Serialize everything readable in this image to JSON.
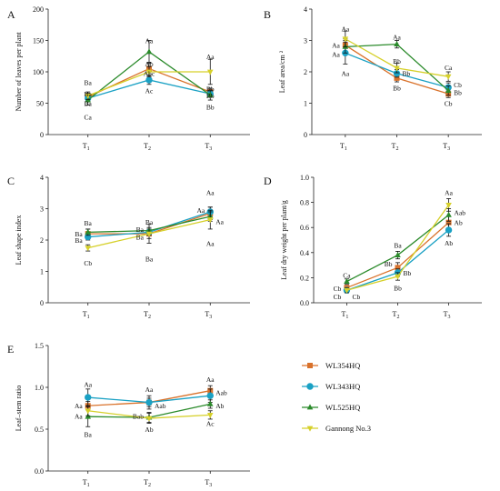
{
  "colors": {
    "WL354HQ": "#d9722b",
    "WL343HQ": "#1aa1c4",
    "WL525HQ": "#2a8a2a",
    "Gannong No.3": "#d6d02a",
    "axis": "#222222"
  },
  "legend": {
    "position": "bottom-right",
    "items": [
      {
        "name": "WL354HQ",
        "marker": "square"
      },
      {
        "name": "WL343HQ",
        "marker": "circle"
      },
      {
        "name": "WL525HQ",
        "marker": "triangle-up"
      },
      {
        "name": "Gannong No.3",
        "marker": "triangle-down"
      }
    ]
  },
  "chart_data": [
    {
      "panel": "A",
      "type": "line",
      "x": [
        "T1",
        "T2",
        "T3"
      ],
      "x_tick_labels": [
        {
          "base": "T",
          "sub": "1"
        },
        {
          "base": "T",
          "sub": "2"
        },
        {
          "base": "T",
          "sub": "3"
        }
      ],
      "ylabel": "Number of leaves per plant",
      "ylim": [
        0,
        200
      ],
      "yticks": [
        "0",
        "50",
        "100",
        "150",
        "200"
      ],
      "series": [
        {
          "name": "WL354HQ",
          "values": [
            60,
            105,
            68
          ],
          "err": [
            6,
            10,
            6
          ]
        },
        {
          "name": "WL343HQ",
          "values": [
            58,
            87,
            65
          ],
          "err": [
            6,
            7,
            5
          ]
        },
        {
          "name": "WL525HQ",
          "values": [
            55,
            132,
            63
          ],
          "err": [
            8,
            18,
            8
          ]
        },
        {
          "name": "Gannong No.3",
          "values": [
            62,
            100,
            100
          ],
          "err": [
            6,
            8,
            20
          ]
        }
      ],
      "annotations": [
        {
          "text": "Ba",
          "x": 0,
          "y": 83
        },
        {
          "text": "Ba",
          "x": 0,
          "y": 65
        },
        {
          "text": "Ba",
          "x": 0,
          "y": 50
        },
        {
          "text": "Ca",
          "x": 0,
          "y": 28
        },
        {
          "text": "Aa",
          "x": 1,
          "y": 150
        },
        {
          "text": "Ab",
          "x": 1,
          "y": 113
        },
        {
          "text": "Abc",
          "x": 1,
          "y": 98
        },
        {
          "text": "Ac",
          "x": 1,
          "y": 70
        },
        {
          "text": "Aa",
          "x": 2,
          "y": 125
        },
        {
          "text": "Bb",
          "x": 2,
          "y": 73
        },
        {
          "text": "Bb",
          "x": 2,
          "y": 62
        },
        {
          "text": "Bb",
          "x": 2,
          "y": 44
        }
      ]
    },
    {
      "panel": "B",
      "type": "line",
      "x": [
        "T1",
        "T2",
        "T3"
      ],
      "x_tick_labels": [
        {
          "base": "T",
          "sub": "1"
        },
        {
          "base": "T",
          "sub": "2"
        },
        {
          "base": "T",
          "sub": "3"
        }
      ],
      "ylabel": "Leaf area/cm ²",
      "ylim": [
        0,
        4
      ],
      "yticks": [
        "0",
        "1",
        "2",
        "3",
        "4"
      ],
      "series": [
        {
          "name": "WL354HQ",
          "values": [
            2.85,
            1.8,
            1.3
          ],
          "err": [
            0.2,
            0.12,
            0.12
          ]
        },
        {
          "name": "WL343HQ",
          "values": [
            2.6,
            1.95,
            1.5
          ],
          "err": [
            0.35,
            0.12,
            0.15
          ]
        },
        {
          "name": "WL525HQ",
          "values": [
            2.8,
            2.88,
            1.4
          ],
          "err": [
            0.2,
            0.12,
            0.15
          ]
        },
        {
          "name": "Gannong No.3",
          "values": [
            3.05,
            2.12,
            1.85
          ],
          "err": [
            0.25,
            0.15,
            0.15
          ]
        }
      ],
      "annotations": [
        {
          "text": "Aa",
          "x": 0,
          "y": 3.38
        },
        {
          "text": "Aa",
          "x": 0,
          "y": 2.85,
          "side": "left"
        },
        {
          "text": "Aa",
          "x": 0,
          "y": 2.57,
          "side": "left"
        },
        {
          "text": "Aa",
          "x": 0,
          "y": 1.95
        },
        {
          "text": "Aa",
          "x": 1,
          "y": 3.12
        },
        {
          "text": "Bb",
          "x": 1,
          "y": 2.35
        },
        {
          "text": "Bb",
          "x": 1,
          "y": 1.95,
          "side": "right"
        },
        {
          "text": "Bb",
          "x": 1,
          "y": 1.5
        },
        {
          "text": "Ca",
          "x": 2,
          "y": 2.15
        },
        {
          "text": "Cb",
          "x": 2,
          "y": 1.6,
          "side": "right"
        },
        {
          "text": "Bb",
          "x": 2,
          "y": 1.35,
          "side": "right"
        },
        {
          "text": "Cb",
          "x": 2,
          "y": 1.0
        }
      ]
    },
    {
      "panel": "C",
      "type": "line",
      "x": [
        "T1",
        "T2",
        "T3"
      ],
      "x_tick_labels": [
        {
          "base": "T",
          "sub": "1"
        },
        {
          "base": "T",
          "sub": "2"
        },
        {
          "base": "T",
          "sub": "3"
        }
      ],
      "ylabel": "Leaf shape index",
      "ylim": [
        0,
        4
      ],
      "yticks": [
        "0",
        "1",
        "2",
        "3",
        "4"
      ],
      "series": [
        {
          "name": "WL354HQ",
          "values": [
            2.2,
            2.2,
            2.85
          ],
          "err": [
            0.15,
            0.15,
            0.2
          ]
        },
        {
          "name": "WL343HQ",
          "values": [
            2.1,
            2.25,
            2.9
          ],
          "err": [
            0.1,
            0.1,
            0.15
          ]
        },
        {
          "name": "WL525HQ",
          "values": [
            2.25,
            2.3,
            2.75
          ],
          "err": [
            0.1,
            0.1,
            0.15
          ]
        },
        {
          "name": "Gannong No.3",
          "values": [
            1.75,
            2.2,
            2.65
          ],
          "err": [
            0.1,
            0.3,
            0.3
          ]
        }
      ],
      "annotations": [
        {
          "text": "Ba",
          "x": 0,
          "y": 2.55
        },
        {
          "text": "Ba",
          "x": 0,
          "y": 2.2,
          "side": "left"
        },
        {
          "text": "Ba",
          "x": 0,
          "y": 2.0,
          "side": "left"
        },
        {
          "text": "Cb",
          "x": 0,
          "y": 1.28
        },
        {
          "text": "Ba",
          "x": 1,
          "y": 2.58
        },
        {
          "text": "Ba",
          "x": 1,
          "y": 2.35,
          "side": "left"
        },
        {
          "text": "Ba",
          "x": 1,
          "y": 2.1,
          "side": "left"
        },
        {
          "text": "Ba",
          "x": 1,
          "y": 1.4
        },
        {
          "text": "Aa",
          "x": 2,
          "y": 3.52
        },
        {
          "text": "Aa",
          "x": 2,
          "y": 2.95,
          "side": "left"
        },
        {
          "text": "Aa",
          "x": 2,
          "y": 2.6,
          "side": "right"
        },
        {
          "text": "Aa",
          "x": 2,
          "y": 1.9
        }
      ]
    },
    {
      "panel": "D",
      "type": "line",
      "x": [
        "T1",
        "T2",
        "T3"
      ],
      "x_tick_labels": [
        {
          "base": "T",
          "sub": "1"
        },
        {
          "base": "T",
          "sub": "2"
        },
        {
          "base": "T",
          "sub": "3"
        }
      ],
      "ylabel": "Leaf dry weight per plant/g",
      "ylim": [
        0,
        1.0
      ],
      "yticks": [
        "0.0",
        "0.2",
        "0.4",
        "0.6",
        "0.8",
        "1.0"
      ],
      "series": [
        {
          "name": "WL354HQ",
          "values": [
            0.12,
            0.28,
            0.64
          ],
          "err": [
            0.02,
            0.04,
            0.05
          ]
        },
        {
          "name": "WL343HQ",
          "values": [
            0.1,
            0.24,
            0.58
          ],
          "err": [
            0.02,
            0.03,
            0.05
          ]
        },
        {
          "name": "WL525HQ",
          "values": [
            0.17,
            0.38,
            0.7
          ],
          "err": [
            0.02,
            0.03,
            0.05
          ]
        },
        {
          "name": "Gannong No.3",
          "values": [
            0.1,
            0.21,
            0.78
          ],
          "err": [
            0.02,
            0.03,
            0.05
          ]
        }
      ],
      "annotations": [
        {
          "text": "Ca",
          "x": 0,
          "y": 0.22
        },
        {
          "text": "Cb",
          "x": 0,
          "y": 0.115,
          "side": "left"
        },
        {
          "text": "Cb",
          "x": 0,
          "y": 0.05,
          "side": "left"
        },
        {
          "text": "Cb",
          "x": 0,
          "y": 0.05,
          "side": "right"
        },
        {
          "text": "Ba",
          "x": 1,
          "y": 0.46
        },
        {
          "text": "Bb",
          "x": 1,
          "y": 0.31,
          "side": "left"
        },
        {
          "text": "Bb",
          "x": 1,
          "y": 0.24,
          "side": "right"
        },
        {
          "text": "Bb",
          "x": 1,
          "y": 0.12
        },
        {
          "text": "Aa",
          "x": 2,
          "y": 0.88
        },
        {
          "text": "Aab",
          "x": 2,
          "y": 0.72,
          "side": "right"
        },
        {
          "text": "Ab",
          "x": 2,
          "y": 0.64,
          "side": "right"
        },
        {
          "text": "Ab",
          "x": 2,
          "y": 0.48
        }
      ]
    },
    {
      "panel": "E",
      "type": "line",
      "x": [
        "T1",
        "T2",
        "T3"
      ],
      "x_tick_labels": [
        {
          "base": "T",
          "sub": "1"
        },
        {
          "base": "T",
          "sub": "2"
        },
        {
          "base": "T",
          "sub": "3"
        }
      ],
      "ylabel": "Leaf–stem ratio",
      "ylim": [
        0,
        1.5
      ],
      "yticks": [
        "0.0",
        "0.5",
        "1.0",
        "1.5"
      ],
      "series": [
        {
          "name": "WL354HQ",
          "values": [
            0.78,
            0.82,
            0.96
          ],
          "err": [
            0.05,
            0.05,
            0.06
          ]
        },
        {
          "name": "WL343HQ",
          "values": [
            0.88,
            0.82,
            0.9
          ],
          "err": [
            0.1,
            0.08,
            0.08
          ]
        },
        {
          "name": "WL525HQ",
          "values": [
            0.65,
            0.64,
            0.8
          ],
          "err": [
            0.12,
            0.06,
            0.05
          ]
        },
        {
          "name": "Gannong No.3",
          "values": [
            0.72,
            0.63,
            0.67
          ],
          "err": [
            0.06,
            0.06,
            0.05
          ]
        }
      ],
      "annotations": [
        {
          "text": "Aa",
          "x": 0,
          "y": 1.04
        },
        {
          "text": "Aa",
          "x": 0,
          "y": 0.78,
          "side": "left"
        },
        {
          "text": "Aa",
          "x": 0,
          "y": 0.66,
          "side": "left"
        },
        {
          "text": "Ba",
          "x": 0,
          "y": 0.44
        },
        {
          "text": "Aa",
          "x": 1,
          "y": 0.98
        },
        {
          "text": "Bab",
          "x": 1,
          "y": 0.66,
          "side": "left"
        },
        {
          "text": "Aab",
          "x": 1,
          "y": 0.78,
          "side": "right"
        },
        {
          "text": "Ab",
          "x": 1,
          "y": 0.5
        },
        {
          "text": "Aa",
          "x": 2,
          "y": 1.1
        },
        {
          "text": "Aab",
          "x": 2,
          "y": 0.94,
          "side": "right"
        },
        {
          "text": "Ab",
          "x": 2,
          "y": 0.78,
          "side": "right"
        },
        {
          "text": "Ac",
          "x": 2,
          "y": 0.57
        }
      ]
    }
  ]
}
